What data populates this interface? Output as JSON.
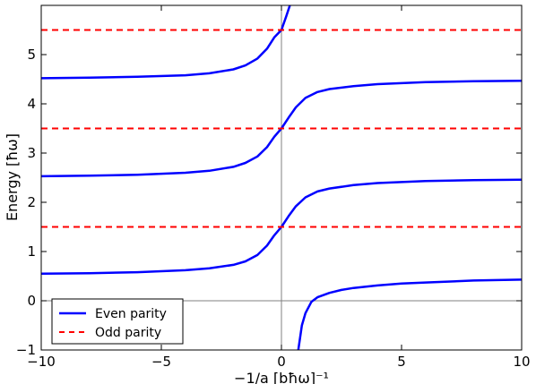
{
  "chart_data": {
    "type": "line",
    "title": "",
    "xlabel": "−1/a [bħω]⁻¹",
    "ylabel": "Energy [ħω]",
    "xlim": [
      -10,
      10
    ],
    "ylim": [
      -1,
      6
    ],
    "x_ticks": [
      -10,
      -5,
      0,
      5,
      10
    ],
    "x_tick_labels": [
      "−10",
      "−5",
      "0",
      "5",
      "10"
    ],
    "y_ticks": [
      -1,
      0,
      1,
      2,
      3,
      4,
      5
    ],
    "y_tick_labels": [
      "−1",
      "0",
      "1",
      "2",
      "3",
      "4",
      "5"
    ],
    "grid": false,
    "legend_placement": "lower-left",
    "reference_lines": {
      "horizontal": [
        0
      ],
      "vertical": [
        0
      ],
      "color": "#808080"
    },
    "series": [
      {
        "name": "Even parity",
        "style": "solid",
        "color": "#0000ff",
        "branches": [
          {
            "x": [
              -10,
              -8,
              -6,
              -4,
              -3,
              -2,
              -1.5,
              -1,
              -0.6,
              -0.3,
              0,
              0.2,
              0.35
            ],
            "y": [
              4.52,
              4.53,
              4.55,
              4.58,
              4.62,
              4.7,
              4.78,
              4.92,
              5.12,
              5.35,
              5.5,
              5.78,
              6
            ]
          },
          {
            "x": [
              -10,
              -8,
              -6,
              -4,
              -3,
              -2,
              -1.5,
              -1,
              -0.6,
              -0.3,
              0,
              0.3,
              0.6,
              1,
              1.5,
              2,
              3,
              4,
              6,
              8,
              10
            ],
            "y": [
              2.53,
              2.54,
              2.56,
              2.6,
              2.64,
              2.72,
              2.8,
              2.93,
              3.12,
              3.33,
              3.5,
              3.72,
              3.93,
              4.12,
              4.24,
              4.3,
              4.36,
              4.4,
              4.44,
              4.46,
              4.47
            ]
          },
          {
            "x": [
              -10,
              -8,
              -6,
              -4,
              -3,
              -2,
              -1.5,
              -1,
              -0.6,
              -0.3,
              0,
              0.3,
              0.6,
              1,
              1.5,
              2,
              3,
              4,
              6,
              8,
              10
            ],
            "y": [
              0.55,
              0.56,
              0.58,
              0.62,
              0.66,
              0.73,
              0.8,
              0.93,
              1.12,
              1.33,
              1.5,
              1.72,
              1.92,
              2.1,
              2.22,
              2.28,
              2.35,
              2.39,
              2.43,
              2.45,
              2.46
            ]
          },
          {
            "x": [
              0.7,
              0.85,
              1,
              1.25,
              1.5,
              2,
              2.5,
              3,
              4,
              5,
              6,
              8,
              10
            ],
            "y": [
              -1,
              -0.5,
              -0.25,
              -0.02,
              0.07,
              0.16,
              0.22,
              0.26,
              0.31,
              0.35,
              0.37,
              0.41,
              0.43
            ]
          }
        ]
      },
      {
        "name": "Odd parity",
        "style": "dashed",
        "color": "#ff0000",
        "branches": [
          {
            "x": [
              -10,
              10
            ],
            "y": [
              1.5,
              1.5
            ]
          },
          {
            "x": [
              -10,
              10
            ],
            "y": [
              3.5,
              3.5
            ]
          },
          {
            "x": [
              -10,
              10
            ],
            "y": [
              5.5,
              5.5
            ]
          }
        ]
      }
    ]
  }
}
